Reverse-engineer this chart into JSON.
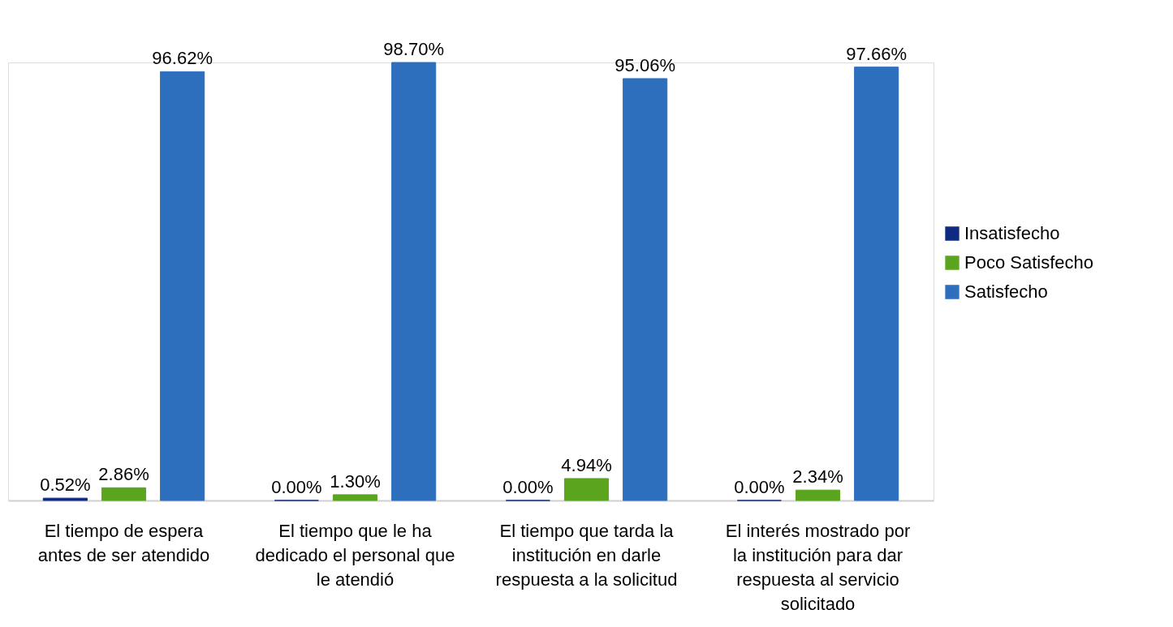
{
  "chart_data": {
    "type": "bar",
    "categories": [
      "El tiempo de espera antes de ser atendido",
      "El tiempo que le ha dedicado el personal que le atendió",
      "El tiempo que tarda la institución en darle respuesta a la solicitud",
      "El interés mostrado por la institución para dar respuesta al servicio solicitado"
    ],
    "series": [
      {
        "name": "Insatisfecho",
        "color": "#0e2a80",
        "values": [
          0.52,
          0.0,
          0.0,
          0.0
        ],
        "value_labels": [
          "0.52%",
          "0.00%",
          "0.00%",
          "0.00%"
        ]
      },
      {
        "name": "Poco Satisfecho",
        "color": "#5ba51e",
        "values": [
          2.86,
          1.3,
          4.94,
          2.34
        ],
        "value_labels": [
          "2.86%",
          "1.30%",
          "4.94%",
          "2.34%"
        ]
      },
      {
        "name": "Satisfecho",
        "color": "#2e6fbd",
        "values": [
          96.62,
          98.7,
          95.06,
          97.66
        ],
        "value_labels": [
          "96.62%",
          "98.70%",
          "95.06%",
          "97.66%"
        ]
      }
    ],
    "legend": "right",
    "grid": false
  }
}
